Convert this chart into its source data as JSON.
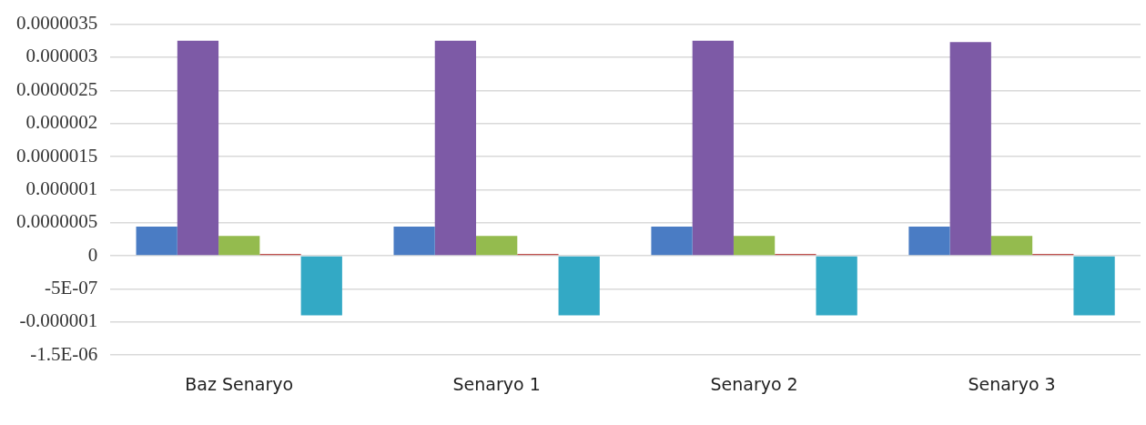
{
  "chart_data": {
    "type": "bar",
    "categories": [
      "Baz Senaryo",
      "Senaryo 1",
      "Senaryo 2",
      "Senaryo 3"
    ],
    "series": [
      {
        "color": "#4a7cc4",
        "values": [
          4.4e-07,
          4.4e-07,
          4.4e-07,
          4.4e-07
        ]
      },
      {
        "color": "#7d5aa6",
        "values": [
          3.25e-06,
          3.25e-06,
          3.25e-06,
          3.23e-06
        ]
      },
      {
        "color": "#94bb4e",
        "values": [
          3e-07,
          3e-07,
          3e-07,
          3e-07
        ]
      },
      {
        "color": "#c0504d",
        "values": [
          3e-08,
          3e-08,
          3e-08,
          3e-08
        ]
      },
      {
        "color": "#33a9c5",
        "values": [
          -9e-07,
          -9e-07,
          -9e-07,
          -9e-07
        ]
      }
    ],
    "ylim": [
      -1.5e-06,
      3.5e-06
    ],
    "yticks": [
      {
        "value": -1.5e-06,
        "label": "-1.5E-06"
      },
      {
        "value": -1e-06,
        "label": "-0.000001"
      },
      {
        "value": -5e-07,
        "label": "-5E-07"
      },
      0,
      {
        "value": 5e-07,
        "label": "0.0000005"
      },
      {
        "value": 1e-06,
        "label": "0.000001"
      },
      {
        "value": 1.5e-06,
        "label": "0.0000015"
      },
      {
        "value": 2e-06,
        "label": "0.000002"
      },
      {
        "value": 2.5e-06,
        "label": "0.0000025"
      },
      {
        "value": 3e-06,
        "label": "0.000003"
      },
      {
        "value": 3.5e-06,
        "label": "0.0000035"
      }
    ],
    "grid": "y",
    "legend": false
  }
}
